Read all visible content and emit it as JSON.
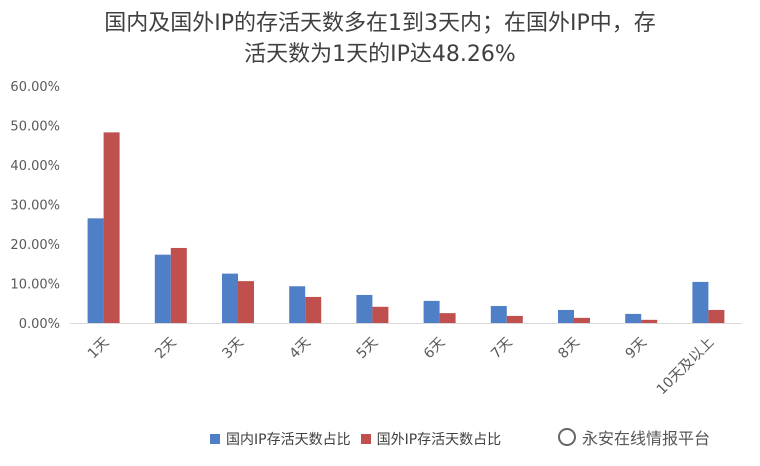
{
  "title_lines": [
    "国内及国外IP的存活天数多在1到3天内；在国外IP中，存",
    "活天数为1天的IP达48.26%"
  ],
  "watermark_text": "永安在线情报平台",
  "chart_data": {
    "type": "bar",
    "title": "国内及国外IP的存活天数多在1到3天内；在国外IP中，存活天数为1天的IP达48.26%",
    "categories": [
      "1天",
      "2天",
      "3天",
      "4天",
      "5天",
      "6天",
      "7天",
      "8天",
      "9天",
      "10天及以上"
    ],
    "series": [
      {
        "name": "国内IP存活天数占比",
        "color": "#4F7FC7",
        "values": [
          26.5,
          17.3,
          12.5,
          9.3,
          7.1,
          5.6,
          4.3,
          3.3,
          2.3,
          10.4
        ]
      },
      {
        "name": "国外IP存活天数占比",
        "color": "#C0504D",
        "values": [
          48.26,
          19.0,
          10.6,
          6.6,
          4.1,
          2.5,
          1.8,
          1.3,
          0.8,
          3.3
        ]
      }
    ],
    "yticks": [
      "0.00%",
      "10.00%",
      "20.00%",
      "30.00%",
      "40.00%",
      "50.00%",
      "60.00%"
    ],
    "ylim": [
      0,
      60
    ],
    "legend_position": "bottom",
    "grid": false
  }
}
